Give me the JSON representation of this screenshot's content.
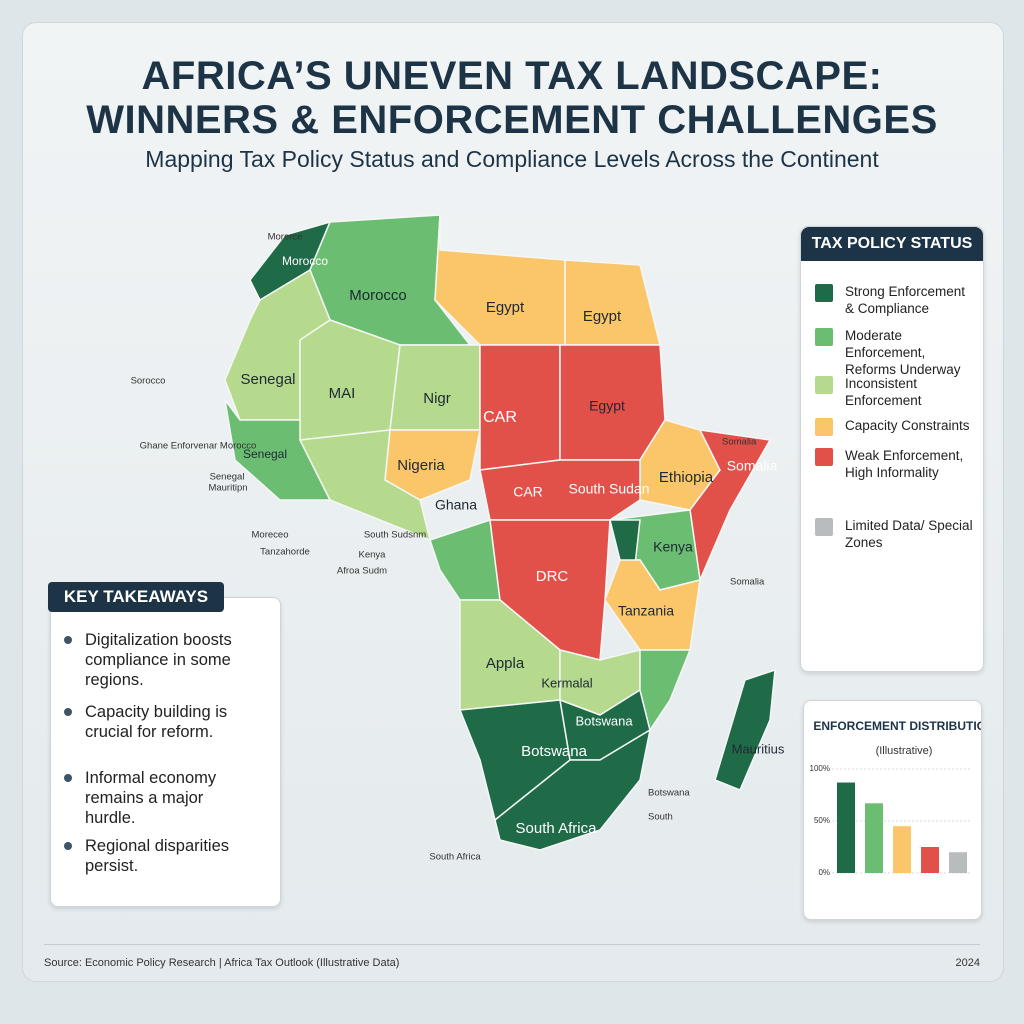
{
  "header": {
    "title_lines": [
      "AFRICA’S UNEVEN TAX LANDSCAPE:",
      "WINNERS & ENFORCEMENT CHALLENGES"
    ],
    "subtitle": "Mapping Tax Policy Status and Compliance Levels Across the Continent"
  },
  "map": {
    "labels": [
      "Morocco",
      "Morocco",
      "Egypt",
      "Egypt",
      "Senegal",
      "MAI",
      "Nigr",
      "CAR",
      "Egypt",
      "Nigeria",
      "Senegal",
      "Ghana",
      "CAR",
      "South Sudan",
      "Ethiopia",
      "Somalia",
      "Kenya",
      "DRC",
      "Tanzania",
      "Appla",
      "Kermalal",
      "Botswana",
      "Botswana",
      "Mauritius",
      "South Africa"
    ],
    "callouts": [
      "Morerce",
      "Sorocco",
      "Ghane Enforvenar Morocco",
      "Senegal",
      "Mauritipn",
      "Moreceo",
      "Tanzahorde",
      "South Sudsnm",
      "Kenya",
      "Afroa Sudm",
      "Somalia",
      "Somalia",
      "Botswana",
      "South",
      "South Africa"
    ]
  },
  "legend": {
    "title": "TAX POLICY STATUS",
    "items": [
      {
        "label": "Strong Enforcement & Compliance",
        "color": "#1f6b48"
      },
      {
        "label": "Moderate Enforcement, Reforms Underway",
        "color": "#6bbd72"
      },
      {
        "label": "Inconsistent Enforcement",
        "color": "#b5da8e"
      },
      {
        "label": "Capacity Constraints",
        "color": "#fbc669"
      },
      {
        "label": "Weak Enforcement, High Informality",
        "color": "#e2504a"
      },
      {
        "label": "Limited Data/ Special Zones",
        "color": "#b9bcbd"
      }
    ]
  },
  "takeaways": {
    "title": "KEY TAKEAWAYS",
    "items": [
      "Digitalization boosts compliance in some regions.",
      "Capacity building is crucial for reform.",
      "Informal economy remains a major hurdle.",
      "Regional disparities persist."
    ]
  },
  "chart_data": {
    "type": "bar",
    "title": "ENFORCEMENT DISTRIBUTION",
    "subtitle": "(Illustrative)",
    "categories": [
      null,
      null,
      null,
      null,
      null
    ],
    "values": [
      87,
      67,
      45,
      25,
      20
    ],
    "colors": [
      "#1f6b48",
      "#6bbd72",
      "#fbc669",
      "#e2504a",
      "#b9bcbd"
    ],
    "ylim": [
      0,
      100
    ],
    "yticks": [
      {
        "value": 0,
        "label": "0%"
      },
      {
        "value": 50,
        "label": "50%"
      },
      {
        "value": 100,
        "label": "100%"
      }
    ],
    "grid": true
  },
  "footer": {
    "source": "Source: Economic Policy Research | Africa Tax Outlook (Illustrative Data)",
    "year": "2024"
  }
}
